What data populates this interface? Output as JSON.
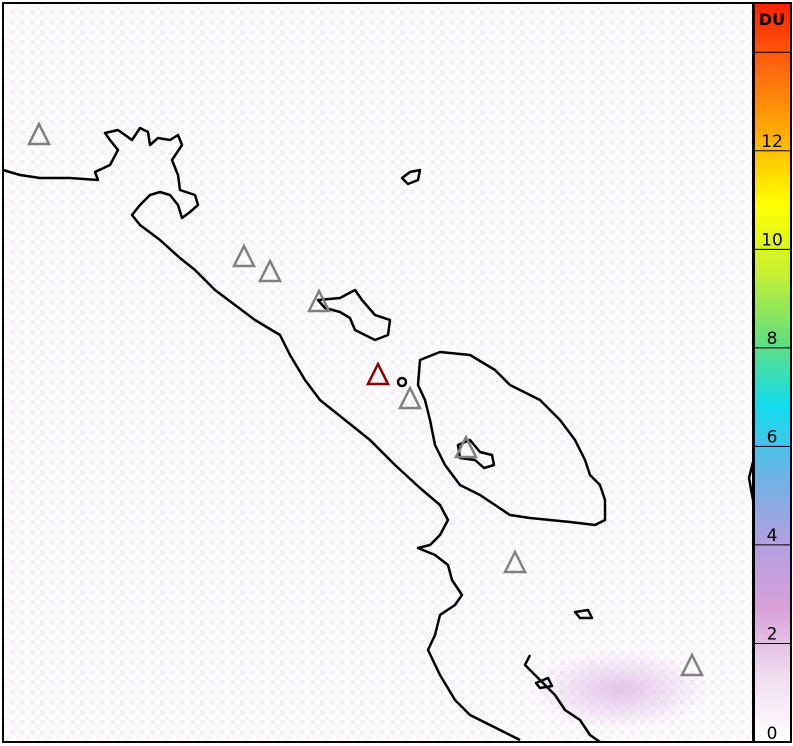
{
  "colorbar": {
    "unit": "DU",
    "min": 0,
    "max": 15,
    "ticks": [
      "0",
      "2",
      "4",
      "6",
      "8",
      "10",
      "12"
    ],
    "colors": [
      "#ffffff",
      "#efdcef",
      "#d7a0d9",
      "#b0a0e0",
      "#6ab4e6",
      "#12dcee",
      "#66e07a",
      "#c8f030",
      "#ffff00",
      "#ffb000",
      "#ff6a10",
      "#ff2000"
    ]
  },
  "map": {
    "background_color": "#ffffff",
    "haze_color": "#e8c8ec",
    "coastline_color": "#000000",
    "volcano_markers": [
      {
        "status": "inactive",
        "color": "#808080"
      },
      {
        "status": "inactive",
        "color": "#808080"
      },
      {
        "status": "inactive",
        "color": "#808080"
      },
      {
        "status": "inactive",
        "color": "#808080"
      },
      {
        "status": "active",
        "color": "#8b0000"
      },
      {
        "status": "inactive",
        "color": "#808080"
      },
      {
        "status": "inactive",
        "color": "#808080"
      },
      {
        "status": "inactive",
        "color": "#808080"
      },
      {
        "status": "inactive",
        "color": "#808080"
      }
    ]
  }
}
